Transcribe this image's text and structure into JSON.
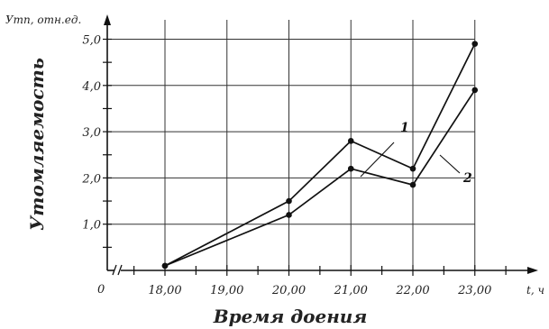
{
  "chart_data": {
    "type": "line",
    "xlabel": "Время доения",
    "ylabel": "Утомляемость",
    "y_axis_unit": "Утп, отн.ед.",
    "x_axis_unit": "t, ч",
    "origin_label": "0",
    "x": [
      18,
      20,
      21,
      22,
      23
    ],
    "x_tick_labels": [
      "18,00",
      "19,00",
      "20,00",
      "21,00",
      "22,00",
      "23,00"
    ],
    "y_tick_labels": [
      "1,0",
      "2,0",
      "3,0",
      "4,0",
      "5,0"
    ],
    "ylim": [
      0,
      5.4
    ],
    "grid": true,
    "series": [
      {
        "name": "1",
        "values": [
          0.1,
          1.5,
          2.8,
          2.2,
          4.9
        ]
      },
      {
        "name": "2",
        "values": [
          0.1,
          1.2,
          2.2,
          1.85,
          3.9
        ]
      }
    ]
  }
}
